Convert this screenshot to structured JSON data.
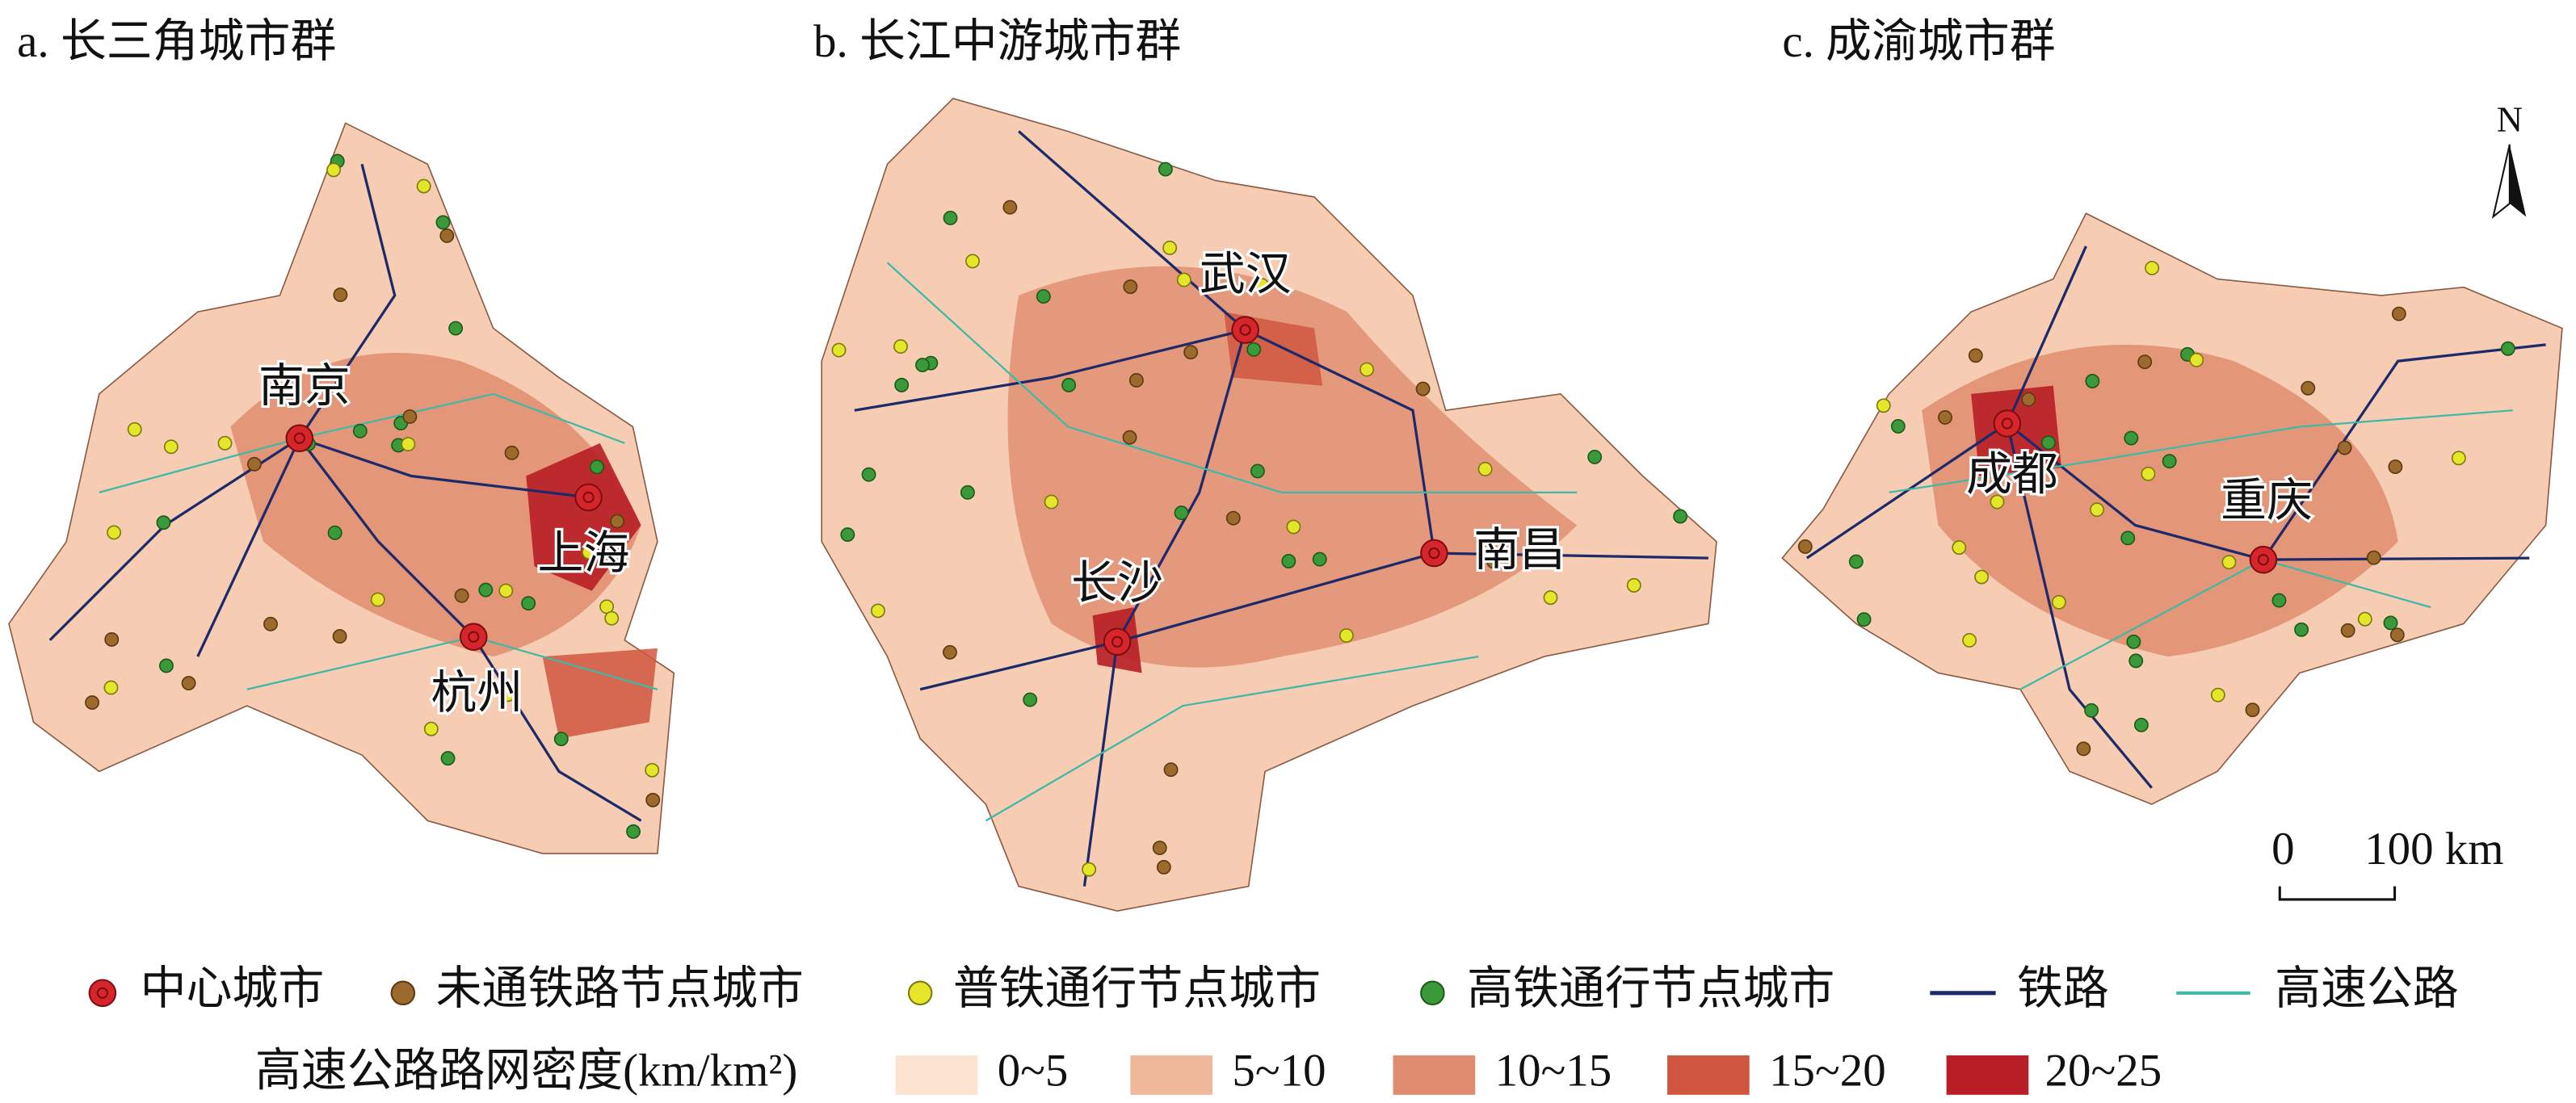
{
  "panels": [
    {
      "title": "a. 长三角城市群",
      "cities": [
        "南京",
        "上海",
        "杭州"
      ]
    },
    {
      "title": "b. 长江中游城市群",
      "cities": [
        "武汉",
        "长沙",
        "南昌"
      ]
    },
    {
      "title": "c. 成渝城市群",
      "cities": [
        "成都",
        "重庆"
      ]
    }
  ],
  "north": "N",
  "scale": [
    "0",
    "100 km"
  ],
  "legend": {
    "points": [
      "中心城市",
      "未通铁路节点城市",
      "普铁通行节点城市",
      "高铁通行节点城市"
    ],
    "lines": [
      "铁路",
      "高速公路"
    ],
    "density_title": "高速公路路网密度(km/km²)",
    "classes": [
      "0~5",
      "5~10",
      "10~15",
      "15~20",
      "20~25"
    ]
  }
}
